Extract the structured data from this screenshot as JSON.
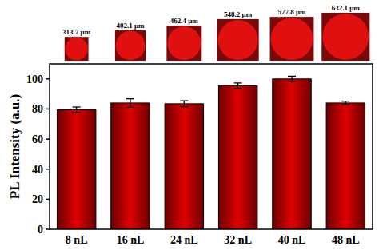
{
  "chart_data": {
    "type": "bar",
    "y_label": "PL Intensity (a.u.)",
    "categories": [
      "8 nL",
      "16 nL",
      "24 nL",
      "32 nL",
      "40 nL",
      "48 nL"
    ],
    "values": [
      79.5,
      84.0,
      83.5,
      95.5,
      100.0,
      84.0
    ],
    "errors": [
      1.8,
      2.8,
      2.0,
      1.8,
      1.8,
      1.2
    ],
    "droplet_diameters": [
      313.7,
      402.1,
      462.4,
      548.2,
      577.8,
      632.1
    ],
    "droplet_labels": [
      "313.7 μm",
      "402.1 μm",
      "462.4 μm",
      "548.2 μm",
      "577.8 μm",
      "632.1 μm"
    ],
    "color": "#e00000",
    "ylim": [
      0,
      110
    ],
    "yticks": [
      0,
      20,
      40,
      60,
      80,
      100
    ],
    "grid": false
  }
}
